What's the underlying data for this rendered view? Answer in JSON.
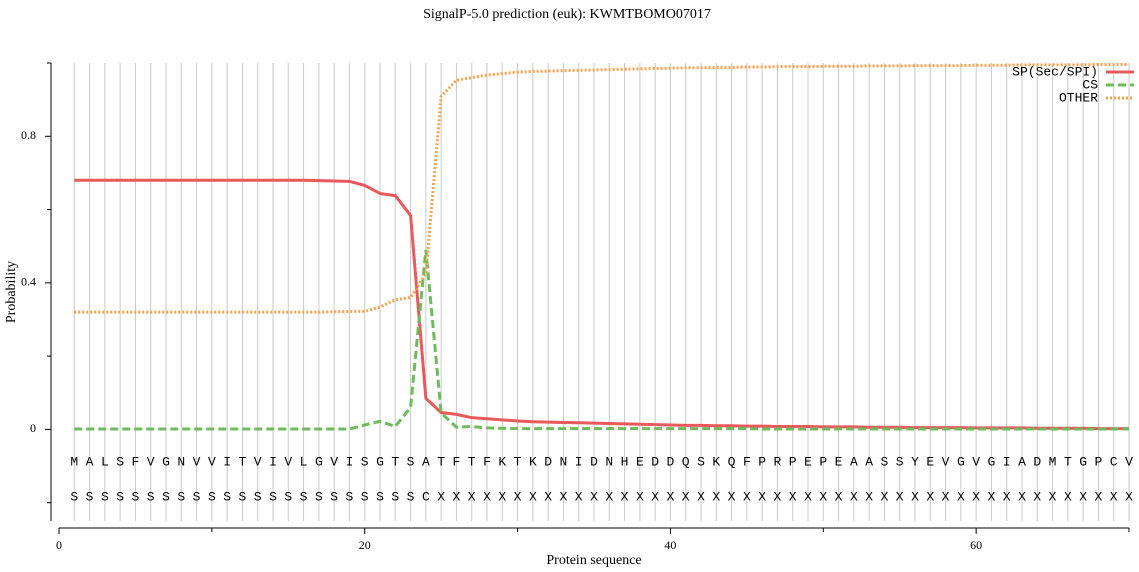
{
  "chart_data": {
    "type": "line",
    "title": "SignalP-5.0 prediction (euk):  KWMTBOMO07017",
    "x_label": "Protein sequence",
    "y_label": "Probability",
    "xlim": [
      0,
      70
    ],
    "ylim": [
      -0.25,
      1.0
    ],
    "xticks": [
      0,
      20,
      40,
      60
    ],
    "xminorticks": [
      10,
      30,
      50,
      70
    ],
    "yticks": [
      0,
      0.4,
      0.8
    ],
    "yminorticks": [
      -0.2,
      0.2,
      0.6,
      1.0
    ],
    "grid": true,
    "legend": "upper right",
    "x": [
      1,
      2,
      3,
      4,
      5,
      6,
      7,
      8,
      9,
      10,
      11,
      12,
      13,
      14,
      15,
      16,
      17,
      18,
      19,
      20,
      21,
      22,
      23,
      24,
      25,
      26,
      27,
      28,
      29,
      30,
      31,
      32,
      33,
      34,
      35,
      36,
      37,
      38,
      39,
      40,
      41,
      42,
      43,
      44,
      45,
      46,
      47,
      48,
      49,
      50,
      51,
      52,
      53,
      54,
      55,
      56,
      57,
      58,
      59,
      60,
      61,
      62,
      63,
      64,
      65,
      66,
      67,
      68,
      69,
      70
    ],
    "sequence": [
      "M",
      "A",
      "L",
      "S",
      "F",
      "V",
      "G",
      "N",
      "V",
      "V",
      "I",
      "T",
      "V",
      "I",
      "V",
      "L",
      "G",
      "V",
      "I",
      "S",
      "G",
      "T",
      "S",
      "A",
      "T",
      "F",
      "T",
      "F",
      "K",
      "T",
      "K",
      "D",
      "N",
      "I",
      "D",
      "N",
      "H",
      "E",
      "D",
      "D",
      "Q",
      "S",
      "K",
      "Q",
      "F",
      "P",
      "R",
      "P",
      "E",
      "P",
      "E",
      "A",
      "A",
      "S",
      "S",
      "Y",
      "E",
      "V",
      "G",
      "V",
      "G",
      "I",
      "A",
      "D",
      "M",
      "T",
      "G",
      "P",
      "C",
      "V"
    ],
    "labels": [
      "S",
      "S",
      "S",
      "S",
      "S",
      "S",
      "S",
      "S",
      "S",
      "S",
      "S",
      "S",
      "S",
      "S",
      "S",
      "S",
      "S",
      "S",
      "S",
      "S",
      "S",
      "S",
      "S",
      "C",
      "X",
      "X",
      "X",
      "X",
      "X",
      "X",
      "X",
      "X",
      "X",
      "X",
      "X",
      "X",
      "X",
      "X",
      "X",
      "X",
      "X",
      "X",
      "X",
      "X",
      "X",
      "X",
      "X",
      "X",
      "X",
      "X",
      "X",
      "X",
      "X",
      "X",
      "X",
      "X",
      "X",
      "X",
      "X",
      "X",
      "X",
      "X",
      "X",
      "X",
      "X",
      "X",
      "X",
      "X",
      "X",
      "X"
    ],
    "series": [
      {
        "name": "SP(Sec/SPI)",
        "color": "#e8595c",
        "dash": "solid",
        "values": [
          0.68,
          0.68,
          0.68,
          0.68,
          0.68,
          0.68,
          0.68,
          0.68,
          0.68,
          0.68,
          0.68,
          0.68,
          0.68,
          0.68,
          0.68,
          0.68,
          0.679,
          0.678,
          0.677,
          0.666,
          0.644,
          0.638,
          0.584,
          0.085,
          0.046,
          0.041,
          0.032,
          0.029,
          0.026,
          0.023,
          0.021,
          0.02,
          0.019,
          0.018,
          0.017,
          0.016,
          0.015,
          0.014,
          0.013,
          0.012,
          0.011,
          0.011,
          0.01,
          0.01,
          0.009,
          0.009,
          0.008,
          0.008,
          0.008,
          0.007,
          0.007,
          0.007,
          0.006,
          0.006,
          0.006,
          0.005,
          0.005,
          0.005,
          0.005,
          0.004,
          0.004,
          0.004,
          0.004,
          0.003,
          0.003,
          0.003,
          0.003,
          0.002,
          0.002,
          0.002
        ]
      },
      {
        "name": "CS",
        "color": "#6dbb5a",
        "dash": "dashed",
        "values": [
          0.001,
          0.001,
          0.001,
          0.001,
          0.001,
          0.001,
          0.001,
          0.001,
          0.001,
          0.001,
          0.001,
          0.001,
          0.001,
          0.001,
          0.001,
          0.001,
          0.001,
          0.001,
          0.001,
          0.012,
          0.022,
          0.008,
          0.06,
          0.49,
          0.045,
          0.006,
          0.008,
          0.004,
          0.003,
          0.002,
          0.002,
          0.002,
          0.002,
          0.002,
          0.002,
          0.002,
          0.002,
          0.002,
          0.002,
          0.002,
          0.002,
          0.002,
          0.002,
          0.002,
          0.002,
          0.001,
          0.001,
          0.001,
          0.001,
          0.001,
          0.001,
          0.001,
          0.001,
          0.001,
          0.001,
          0.001,
          0.001,
          0.001,
          0.001,
          0.001,
          0.001,
          0.001,
          0.001,
          0.001,
          0.001,
          0.001,
          0.001,
          0.001,
          0.001,
          0.001
        ]
      },
      {
        "name": "OTHER",
        "color": "#f5a24c",
        "dash": "dotted",
        "values": [
          0.32,
          0.32,
          0.32,
          0.32,
          0.32,
          0.32,
          0.32,
          0.32,
          0.32,
          0.32,
          0.32,
          0.32,
          0.32,
          0.32,
          0.32,
          0.32,
          0.32,
          0.321,
          0.322,
          0.322,
          0.334,
          0.354,
          0.36,
          0.425,
          0.909,
          0.953,
          0.96,
          0.967,
          0.971,
          0.975,
          0.977,
          0.978,
          0.979,
          0.98,
          0.981,
          0.982,
          0.983,
          0.984,
          0.985,
          0.986,
          0.987,
          0.987,
          0.988,
          0.988,
          0.989,
          0.989,
          0.99,
          0.99,
          0.99,
          0.991,
          0.991,
          0.991,
          0.992,
          0.992,
          0.992,
          0.993,
          0.993,
          0.993,
          0.993,
          0.994,
          0.994,
          0.994,
          0.995,
          0.995,
          0.995,
          0.995,
          0.995,
          0.996,
          0.996,
          0.996
        ]
      }
    ]
  }
}
